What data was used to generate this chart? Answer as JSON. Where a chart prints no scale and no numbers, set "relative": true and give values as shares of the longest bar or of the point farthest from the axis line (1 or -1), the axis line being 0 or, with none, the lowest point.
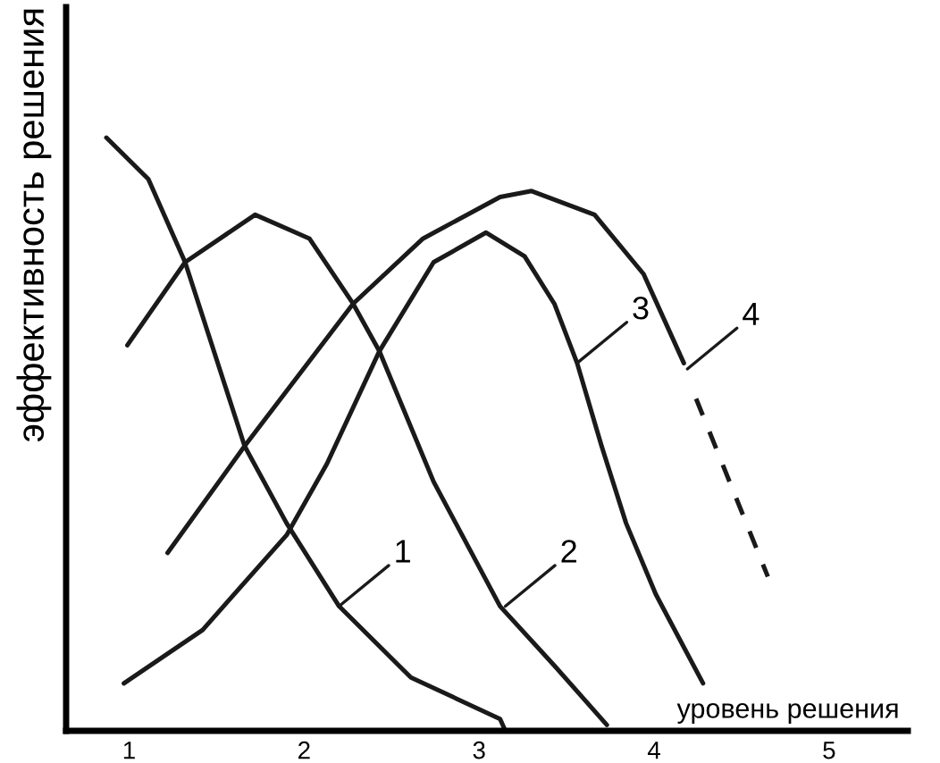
{
  "chart_data": {
    "type": "line",
    "relative": true,
    "xlabel": "уровень решения",
    "ylabel": "эффективность решения",
    "xlim": [
      0.64,
      5.45
    ],
    "xticks": [
      1,
      2,
      3,
      4,
      5
    ],
    "grid": false,
    "legend": false,
    "marker": "none",
    "series": [
      {
        "color": "#1a1a1a",
        "line_style": "solid",
        "x": [
          0.87,
          1.11,
          1.32,
          1.66,
          1.9,
          2.2,
          2.61,
          3.12,
          3.15
        ],
        "values": [
          1.0,
          0.93,
          0.79,
          0.48,
          0.35,
          0.21,
          0.09,
          0.02,
          0.0
        ]
      },
      {
        "color": "#1a1a1a",
        "line_style": "solid",
        "x": [
          0.99,
          1.32,
          1.72,
          2.03,
          2.28,
          2.43,
          2.74,
          3.12,
          3.43,
          3.73
        ],
        "values": [
          0.65,
          0.79,
          0.87,
          0.83,
          0.72,
          0.64,
          0.42,
          0.21,
          0.11,
          0.01
        ]
      },
      {
        "color": "#1a1a1a",
        "line_style": "solid",
        "x": [
          0.97,
          1.42,
          1.9,
          2.13,
          2.43,
          2.74,
          3.04,
          3.26,
          3.43,
          3.56,
          3.7,
          3.84,
          4.01,
          4.28
        ],
        "values": [
          0.08,
          0.17,
          0.33,
          0.45,
          0.64,
          0.79,
          0.84,
          0.8,
          0.72,
          0.62,
          0.48,
          0.35,
          0.23,
          0.08
        ]
      },
      {
        "color": "#1a1a1a",
        "line_style": "solid",
        "x": [
          1.22,
          1.66,
          2.28,
          2.68,
          3.12,
          3.3,
          3.66,
          3.94,
          4.17
        ],
        "values": [
          0.3,
          0.48,
          0.72,
          0.83,
          0.9,
          0.91,
          0.87,
          0.77,
          0.62
        ]
      },
      {
        "color": "#1a1a1a",
        "line_style": "dashed",
        "x": [
          4.24,
          4.65
        ],
        "values": [
          0.56,
          0.26
        ]
      }
    ],
    "annotations": [
      {
        "text": "1",
        "x": 2.2,
        "y": 0.21
      },
      {
        "text": "2",
        "x": 3.15,
        "y": 0.21
      },
      {
        "text": "3",
        "x": 3.56,
        "y": 0.62
      },
      {
        "text": "4",
        "x": 4.19,
        "y": 0.61
      }
    ]
  }
}
